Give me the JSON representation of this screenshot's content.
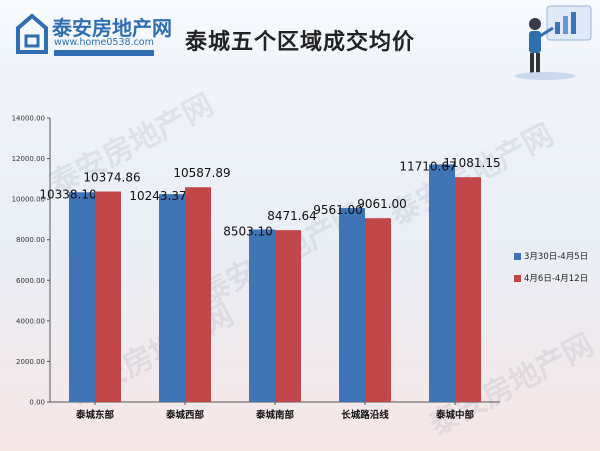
{
  "header": {
    "logo_name": "泰安房地产网",
    "logo_url": "www.home0538.com",
    "title": "泰城五个区域成交均价"
  },
  "watermark_text": "泰安房地产网",
  "colors": {
    "series1": "#3f74b6",
    "series2": "#c2474a",
    "brand": "#2f6fb0"
  },
  "chart_data": {
    "type": "bar",
    "title": "泰城五个区域成交均价",
    "xlabel": "",
    "ylabel": "",
    "ylim": [
      0,
      14000
    ],
    "yticks": [
      "0.00",
      "2000.00",
      "4000.00",
      "6000.00",
      "8000.00",
      "10000.00",
      "12000.00",
      "14000.00"
    ],
    "grid": false,
    "legend_position": "right",
    "categories": [
      "泰城东部",
      "泰城西部",
      "泰城南部",
      "长城路沿线",
      "泰城中部"
    ],
    "series": [
      {
        "name": "3月30日-4月5日",
        "values": [
          10338.1,
          10243.37,
          8503.1,
          9561.0,
          11710.67
        ],
        "labels": [
          "10338.10",
          "10243.37",
          "8503.10",
          "9561.00",
          "11710.67"
        ]
      },
      {
        "name": "4月6日-4月12日",
        "values": [
          10374.86,
          10587.89,
          8471.64,
          9061.0,
          11081.15
        ],
        "labels": [
          "10374.86",
          "10587.89",
          "8471.64",
          "9061.00",
          "11081.15"
        ]
      }
    ]
  }
}
